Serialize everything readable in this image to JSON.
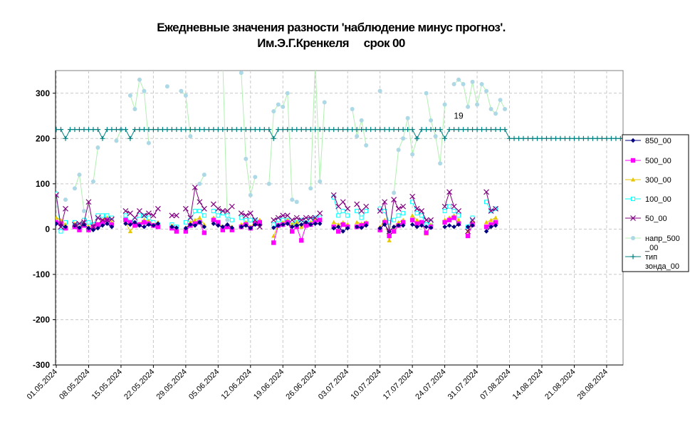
{
  "chart_data": {
    "type": "line",
    "title_lines": [
      "Ежедневные значения разности 'наблюдение минус прогноз'.",
      "Им.Э.Г.Кренкеля     срок 00"
    ],
    "ylim": [
      -300,
      350
    ],
    "yticks": [
      -300,
      -200,
      -100,
      0,
      100,
      200,
      300
    ],
    "grid": true,
    "legend_position": "right",
    "x_start": "2024-05-01",
    "x_end": "2024-08-31",
    "x_tick_labels": [
      "01.05.2024",
      "08.05.2024",
      "15.05.2024",
      "22.05.2024",
      "29.05.2024",
      "05.06.2024",
      "12.06.2024",
      "19.06.2024",
      "26.06.2024",
      "03.07.2024",
      "10.07.2024",
      "17.07.2024",
      "24.07.2024",
      "31.07.2024",
      "07.08.2024",
      "14.08.2024",
      "21.08.2024",
      "28.08.2024"
    ],
    "annotations": [
      {
        "text": "19",
        "x": "2024-07-27",
        "y": 244
      }
    ],
    "series": [
      {
        "name": "850_00",
        "color": "#000080",
        "marker": "diamond",
        "values": [
          12,
          8,
          5,
          null,
          8,
          3,
          10,
          2,
          -2,
          2,
          8,
          12,
          5,
          null,
          null,
          12,
          10,
          15,
          8,
          5,
          10,
          8,
          12,
          null,
          null,
          5,
          3,
          null,
          2,
          10,
          8,
          15,
          5,
          null,
          12,
          8,
          5,
          10,
          3,
          null,
          5,
          8,
          2,
          10,
          8,
          null,
          null,
          3,
          8,
          10,
          12,
          5,
          8,
          10,
          15,
          10,
          12,
          12,
          null,
          null,
          2,
          5,
          -5,
          2,
          null,
          5,
          3,
          8,
          null,
          null,
          2,
          10,
          -5,
          5,
          8,
          8,
          null,
          10,
          5,
          8,
          5,
          3,
          null,
          null,
          5,
          8,
          5,
          10,
          null,
          5,
          8,
          null,
          null,
          -5,
          5,
          8,
          null,
          null
        ]
      },
      {
        "name": "500_00",
        "color": "#ff00ff",
        "marker": "square",
        "values": [
          15,
          12,
          2,
          null,
          5,
          -2,
          8,
          -2,
          5,
          10,
          15,
          20,
          10,
          null,
          null,
          20,
          15,
          8,
          10,
          15,
          12,
          8,
          5,
          null,
          null,
          2,
          -5,
          null,
          -5,
          8,
          12,
          15,
          -8,
          null,
          20,
          15,
          -2,
          5,
          -2,
          null,
          5,
          10,
          2,
          12,
          15,
          null,
          null,
          -30,
          8,
          10,
          15,
          -5,
          5,
          -25,
          8,
          10,
          15,
          20,
          null,
          null,
          5,
          -5,
          10,
          5,
          null,
          5,
          8,
          12,
          null,
          null,
          -2,
          15,
          -15,
          -5,
          8,
          15,
          null,
          20,
          12,
          15,
          -8,
          5,
          null,
          null,
          15,
          20,
          25,
          12,
          null,
          -15,
          10,
          null,
          null,
          5,
          10,
          15,
          null,
          null
        ]
      },
      {
        "name": "300_00",
        "color": "#e6c700",
        "marker": "triangle",
        "values": [
          25,
          20,
          10,
          null,
          12,
          2,
          15,
          5,
          8,
          12,
          20,
          25,
          15,
          null,
          null,
          15,
          -5,
          10,
          12,
          20,
          18,
          10,
          15,
          null,
          null,
          8,
          2,
          null,
          2,
          15,
          20,
          25,
          10,
          null,
          25,
          15,
          5,
          10,
          5,
          null,
          10,
          15,
          5,
          15,
          20,
          null,
          null,
          -15,
          10,
          15,
          20,
          10,
          15,
          5,
          12,
          15,
          20,
          20,
          null,
          null,
          15,
          10,
          15,
          10,
          null,
          15,
          12,
          15,
          null,
          null,
          5,
          20,
          -25,
          5,
          15,
          20,
          null,
          30,
          20,
          15,
          -10,
          10,
          null,
          null,
          20,
          25,
          30,
          20,
          null,
          -5,
          15,
          null,
          null,
          15,
          20,
          25,
          null,
          null
        ]
      },
      {
        "name": "100_00",
        "color": "#00ffff",
        "marker": "square-open",
        "values": [
          78,
          -5,
          15,
          null,
          15,
          10,
          20,
          15,
          10,
          30,
          30,
          30,
          25,
          null,
          null,
          30,
          15,
          20,
          30,
          30,
          25,
          15,
          10,
          null,
          null,
          10,
          5,
          null,
          15,
          20,
          40,
          40,
          30,
          null,
          40,
          30,
          35,
          30,
          20,
          null,
          25,
          20,
          20,
          20,
          15,
          null,
          null,
          10,
          20,
          20,
          20,
          10,
          15,
          20,
          20,
          20,
          25,
          25,
          null,
          null,
          70,
          30,
          40,
          30,
          null,
          40,
          25,
          40,
          null,
          null,
          45,
          40,
          15,
          20,
          30,
          35,
          null,
          60,
          35,
          30,
          10,
          15,
          null,
          null,
          40,
          50,
          40,
          30,
          null,
          5,
          25,
          null,
          null,
          60,
          40,
          45,
          null,
          null
        ]
      },
      {
        "name": "50_00",
        "color": "#800080",
        "marker": "x",
        "values": [
          75,
          5,
          45,
          null,
          10,
          12,
          15,
          60,
          5,
          25,
          20,
          20,
          22,
          null,
          null,
          40,
          35,
          25,
          40,
          30,
          35,
          30,
          45,
          null,
          null,
          30,
          30,
          null,
          45,
          25,
          92,
          60,
          45,
          null,
          55,
          45,
          40,
          40,
          50,
          null,
          35,
          30,
          35,
          20,
          5,
          null,
          null,
          20,
          25,
          30,
          30,
          20,
          25,
          20,
          25,
          25,
          25,
          35,
          null,
          null,
          75,
          50,
          60,
          45,
          null,
          55,
          40,
          50,
          null,
          null,
          40,
          60,
          -5,
          65,
          45,
          50,
          null,
          72,
          45,
          40,
          20,
          20,
          null,
          null,
          50,
          82,
          50,
          40,
          null,
          -5,
          20,
          null,
          null,
          82,
          40,
          45,
          null,
          null
        ]
      },
      {
        "name": "напр_500_00",
        "color": "#add8e6",
        "line_color": "#b0f0b0",
        "marker": "circle",
        "values": [
          78,
          null,
          65,
          null,
          90,
          120,
          40,
          null,
          105,
          180,
          null,
          null,
          null,
          195,
          220,
          null,
          295,
          265,
          330,
          305,
          190,
          null,
          null,
          null,
          315,
          null,
          null,
          305,
          295,
          205,
          null,
          100,
          120,
          null,
          null,
          null,
          370,
          20,
          null,
          null,
          345,
          155,
          75,
          115,
          null,
          null,
          100,
          260,
          275,
          270,
          300,
          65,
          60,
          null,
          null,
          90,
          370,
          105,
          280,
          null,
          null,
          null,
          null,
          null,
          265,
          205,
          240,
          185,
          null,
          null,
          305,
          null,
          null,
          80,
          175,
          200,
          245,
          165,
          200,
          null,
          300,
          240,
          205,
          145,
          275,
          null,
          320,
          330,
          320,
          270,
          325,
          275,
          320,
          305,
          265,
          255,
          285,
          265
        ]
      },
      {
        "name": "тип зонда_00",
        "color": "#008080",
        "marker": "plus",
        "values": [
          220,
          220,
          200,
          220,
          220,
          220,
          220,
          220,
          220,
          220,
          200,
          220,
          220,
          220,
          220,
          220,
          200,
          220,
          220,
          220,
          220,
          220,
          220,
          220,
          220,
          220,
          220,
          220,
          220,
          220,
          220,
          220,
          220,
          220,
          220,
          220,
          220,
          220,
          220,
          220,
          220,
          220,
          220,
          220,
          220,
          220,
          220,
          200,
          220,
          220,
          220,
          220,
          220,
          220,
          220,
          220,
          220,
          220,
          220,
          220,
          220,
          220,
          220,
          220,
          220,
          220,
          220,
          220,
          220,
          220,
          220,
          220,
          220,
          220,
          220,
          220,
          220,
          220,
          200,
          220,
          220,
          220,
          220,
          220,
          200,
          220,
          220,
          220,
          220,
          220,
          220,
          220,
          220,
          220,
          220,
          220,
          220,
          220,
          200,
          200,
          200,
          200,
          200,
          200,
          200,
          200,
          200,
          200,
          200,
          200,
          200,
          200,
          200,
          200,
          200,
          200,
          200,
          200,
          200,
          200,
          200,
          200,
          200,
          200,
          200,
          200,
          200,
          200,
          200,
          200,
          200,
          200,
          200,
          200,
          200,
          200,
          200,
          200,
          200,
          200,
          200,
          200,
          200,
          200,
          200,
          200,
          200,
          200,
          200,
          200,
          200,
          200,
          200,
          200,
          200,
          200,
          200,
          200,
          200,
          200,
          200,
          200,
          200,
          200,
          200,
          200,
          200,
          200,
          200,
          200,
          200,
          200,
          200,
          200,
          200,
          200,
          200,
          200,
          200,
          200,
          200,
          200,
          200,
          200,
          200,
          200,
          200,
          200,
          200,
          200,
          200,
          200,
          200,
          200,
          200,
          200,
          200,
          200,
          200,
          200,
          200,
          200,
          200,
          200
        ]
      }
    ],
    "legend_entries": [
      {
        "lines": [
          "850_00"
        ]
      },
      {
        "lines": [
          "500_00"
        ]
      },
      {
        "lines": [
          "300_00"
        ]
      },
      {
        "lines": [
          "100_00"
        ]
      },
      {
        "lines": [
          "50_00"
        ]
      },
      {
        "lines": [
          "напр_500",
          "_00"
        ]
      },
      {
        "lines": [
          "тип",
          "зонда_00"
        ]
      }
    ]
  }
}
